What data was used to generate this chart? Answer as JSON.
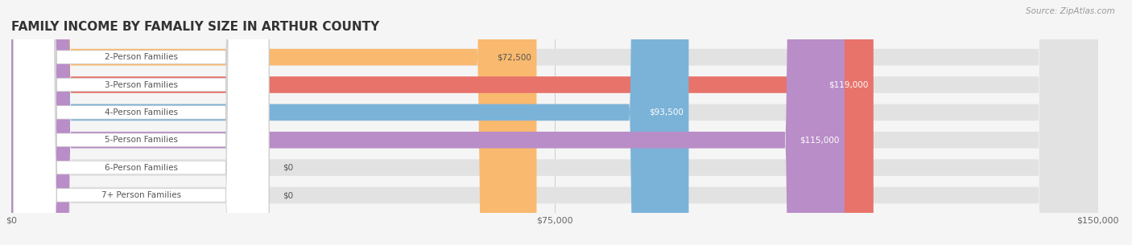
{
  "title": "FAMILY INCOME BY FAMALIY SIZE IN ARTHUR COUNTY",
  "source": "Source: ZipAtlas.com",
  "categories": [
    "2-Person Families",
    "3-Person Families",
    "4-Person Families",
    "5-Person Families",
    "6-Person Families",
    "7+ Person Families"
  ],
  "values": [
    72500,
    119000,
    93500,
    115000,
    0,
    0
  ],
  "bar_colors": [
    "#F9B96E",
    "#E8736A",
    "#7BB3D8",
    "#B98DC8",
    "#5EC8B8",
    "#B0B8E8"
  ],
  "value_label_colors": [
    "#555555",
    "#ffffff",
    "#ffffff",
    "#ffffff",
    "#555555",
    "#555555"
  ],
  "xlim": [
    0,
    150000
  ],
  "xticks": [
    0,
    75000,
    150000
  ],
  "xticklabels": [
    "$0",
    "$75,000",
    "$150,000"
  ],
  "background_color": "#f5f5f5",
  "bar_bg_color": "#e2e2e2",
  "title_fontsize": 11,
  "label_fontsize": 7.5,
  "value_fontsize": 7.5,
  "source_fontsize": 7.5
}
